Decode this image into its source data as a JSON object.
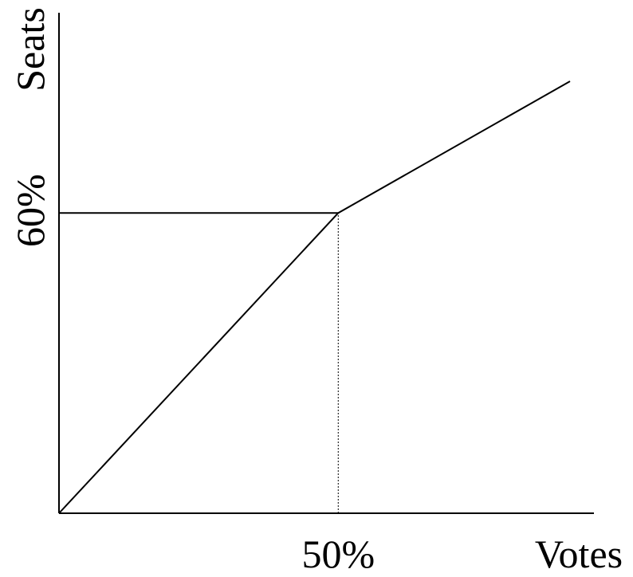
{
  "chart_data": {
    "type": "line",
    "xlabel": "Votes",
    "ylabel": "Seats",
    "x_tick_label": "50%",
    "y_tick_label": "60%",
    "x_tick": 50,
    "y_tick": 60,
    "xlim": [
      0,
      91.5
    ],
    "ylim": [
      0,
      100
    ],
    "series": [
      {
        "x": [
          0,
          50,
          91.5
        ],
        "y": [
          0,
          60,
          86.3
        ]
      }
    ],
    "reference_lines": [
      {
        "kind": "horizontal",
        "y": 60,
        "x_from": 0,
        "x_to": 50,
        "style": "solid"
      },
      {
        "kind": "vertical",
        "x": 50,
        "y_from": 0,
        "y_to": 60,
        "style": "dotted"
      }
    ],
    "colors": {
      "line": "#000000",
      "background": "#ffffff"
    },
    "grid": false
  }
}
